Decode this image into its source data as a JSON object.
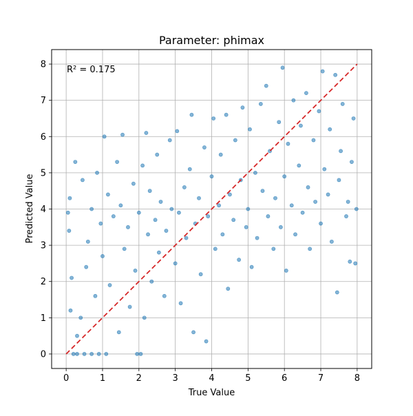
{
  "chart_data": {
    "type": "scatter",
    "title": "Parameter: phimax",
    "xlabel": "True Value",
    "ylabel": "Predicted Value",
    "annotation": "R² = 0.175",
    "xlim": [
      -0.4,
      8.4
    ],
    "ylim": [
      -0.4,
      8.4
    ],
    "xticks": [
      0,
      1,
      2,
      3,
      4,
      5,
      6,
      7,
      8
    ],
    "yticks": [
      0,
      1,
      2,
      3,
      4,
      5,
      6,
      7,
      8
    ],
    "grid": true,
    "colors": {
      "points": "#1f77b4",
      "identity_line": "#d62728",
      "grid": "#b0b0b0"
    },
    "identity_line": {
      "x": [
        0,
        8
      ],
      "y": [
        0,
        8
      ],
      "style": "dashed"
    },
    "points": [
      {
        "x": 0.05,
        "y": 3.9
      },
      {
        "x": 0.1,
        "y": 4.3
      },
      {
        "x": 0.08,
        "y": 3.4
      },
      {
        "x": 0.15,
        "y": 2.1
      },
      {
        "x": 0.12,
        "y": 1.2
      },
      {
        "x": 0.2,
        "y": 0.0
      },
      {
        "x": 0.3,
        "y": 0.0
      },
      {
        "x": 0.5,
        "y": 0.0
      },
      {
        "x": 0.7,
        "y": 0.0
      },
      {
        "x": 0.9,
        "y": 0.0
      },
      {
        "x": 1.1,
        "y": 0.0
      },
      {
        "x": 0.25,
        "y": 5.3
      },
      {
        "x": 0.3,
        "y": 0.5
      },
      {
        "x": 0.4,
        "y": 1.0
      },
      {
        "x": 0.45,
        "y": 4.8
      },
      {
        "x": 0.55,
        "y": 2.4
      },
      {
        "x": 0.6,
        "y": 3.1
      },
      {
        "x": 0.7,
        "y": 4.0
      },
      {
        "x": 0.8,
        "y": 1.6
      },
      {
        "x": 0.85,
        "y": 5.0
      },
      {
        "x": 0.95,
        "y": 3.6
      },
      {
        "x": 1.0,
        "y": 2.7
      },
      {
        "x": 1.05,
        "y": 6.0
      },
      {
        "x": 1.15,
        "y": 4.4
      },
      {
        "x": 1.2,
        "y": 1.9
      },
      {
        "x": 1.3,
        "y": 3.8
      },
      {
        "x": 1.4,
        "y": 5.3
      },
      {
        "x": 1.45,
        "y": 0.6
      },
      {
        "x": 1.5,
        "y": 4.1
      },
      {
        "x": 1.55,
        "y": 6.05
      },
      {
        "x": 1.6,
        "y": 2.9
      },
      {
        "x": 1.7,
        "y": 3.5
      },
      {
        "x": 1.75,
        "y": 1.3
      },
      {
        "x": 1.85,
        "y": 4.7
      },
      {
        "x": 1.9,
        "y": 2.3
      },
      {
        "x": 1.95,
        "y": 0.0
      },
      {
        "x": 2.05,
        "y": 0.0
      },
      {
        "x": 2.0,
        "y": 3.9
      },
      {
        "x": 2.1,
        "y": 5.2
      },
      {
        "x": 2.15,
        "y": 1.0
      },
      {
        "x": 2.2,
        "y": 6.1
      },
      {
        "x": 2.25,
        "y": 3.3
      },
      {
        "x": 2.3,
        "y": 4.5
      },
      {
        "x": 2.35,
        "y": 2.0
      },
      {
        "x": 2.45,
        "y": 3.7
      },
      {
        "x": 2.5,
        "y": 5.5
      },
      {
        "x": 2.55,
        "y": 2.8
      },
      {
        "x": 2.6,
        "y": 4.2
      },
      {
        "x": 2.7,
        "y": 1.6
      },
      {
        "x": 2.75,
        "y": 3.4
      },
      {
        "x": 2.85,
        "y": 5.9
      },
      {
        "x": 2.9,
        "y": 4.0
      },
      {
        "x": 3.0,
        "y": 2.5
      },
      {
        "x": 3.05,
        "y": 6.15
      },
      {
        "x": 3.1,
        "y": 3.9
      },
      {
        "x": 3.15,
        "y": 1.4
      },
      {
        "x": 3.25,
        "y": 4.6
      },
      {
        "x": 3.3,
        "y": 3.2
      },
      {
        "x": 3.4,
        "y": 5.1
      },
      {
        "x": 3.45,
        "y": 6.6
      },
      {
        "x": 3.5,
        "y": 0.6
      },
      {
        "x": 3.55,
        "y": 3.6
      },
      {
        "x": 3.65,
        "y": 4.3
      },
      {
        "x": 3.7,
        "y": 2.2
      },
      {
        "x": 3.8,
        "y": 5.7
      },
      {
        "x": 3.85,
        "y": 0.35
      },
      {
        "x": 3.9,
        "y": 3.8
      },
      {
        "x": 4.0,
        "y": 4.9
      },
      {
        "x": 4.05,
        "y": 6.5
      },
      {
        "x": 4.1,
        "y": 2.9
      },
      {
        "x": 4.2,
        "y": 4.1
      },
      {
        "x": 4.25,
        "y": 5.5
      },
      {
        "x": 4.3,
        "y": 3.3
      },
      {
        "x": 4.4,
        "y": 6.6
      },
      {
        "x": 4.45,
        "y": 1.8
      },
      {
        "x": 4.5,
        "y": 4.4
      },
      {
        "x": 4.6,
        "y": 3.7
      },
      {
        "x": 4.65,
        "y": 5.9
      },
      {
        "x": 4.75,
        "y": 2.6
      },
      {
        "x": 4.8,
        "y": 4.8
      },
      {
        "x": 4.85,
        "y": 6.8
      },
      {
        "x": 4.95,
        "y": 3.5
      },
      {
        "x": 5.0,
        "y": 4.0
      },
      {
        "x": 5.05,
        "y": 6.2
      },
      {
        "x": 5.1,
        "y": 2.4
      },
      {
        "x": 5.2,
        "y": 5.0
      },
      {
        "x": 5.25,
        "y": 3.2
      },
      {
        "x": 5.35,
        "y": 6.9
      },
      {
        "x": 5.4,
        "y": 4.5
      },
      {
        "x": 5.5,
        "y": 7.4
      },
      {
        "x": 5.55,
        "y": 3.8
      },
      {
        "x": 5.6,
        "y": 5.6
      },
      {
        "x": 5.7,
        "y": 2.9
      },
      {
        "x": 5.75,
        "y": 4.3
      },
      {
        "x": 5.85,
        "y": 6.4
      },
      {
        "x": 5.9,
        "y": 3.5
      },
      {
        "x": 5.95,
        "y": 7.9
      },
      {
        "x": 6.0,
        "y": 4.9
      },
      {
        "x": 6.05,
        "y": 2.3
      },
      {
        "x": 6.1,
        "y": 5.8
      },
      {
        "x": 6.2,
        "y": 4.1
      },
      {
        "x": 6.25,
        "y": 7.0
      },
      {
        "x": 6.3,
        "y": 3.3
      },
      {
        "x": 6.4,
        "y": 5.2
      },
      {
        "x": 6.45,
        "y": 6.3
      },
      {
        "x": 6.5,
        "y": 3.9
      },
      {
        "x": 6.6,
        "y": 7.2
      },
      {
        "x": 6.65,
        "y": 4.6
      },
      {
        "x": 6.7,
        "y": 2.9
      },
      {
        "x": 6.8,
        "y": 5.9
      },
      {
        "x": 6.85,
        "y": 4.2
      },
      {
        "x": 6.95,
        "y": 6.7
      },
      {
        "x": 7.0,
        "y": 3.6
      },
      {
        "x": 7.05,
        "y": 7.8
      },
      {
        "x": 7.1,
        "y": 5.1
      },
      {
        "x": 7.2,
        "y": 4.4
      },
      {
        "x": 7.25,
        "y": 6.2
      },
      {
        "x": 7.3,
        "y": 3.1
      },
      {
        "x": 7.4,
        "y": 7.7
      },
      {
        "x": 7.45,
        "y": 1.7
      },
      {
        "x": 7.5,
        "y": 4.8
      },
      {
        "x": 7.55,
        "y": 5.6
      },
      {
        "x": 7.6,
        "y": 6.9
      },
      {
        "x": 7.7,
        "y": 3.8
      },
      {
        "x": 7.75,
        "y": 4.2
      },
      {
        "x": 7.8,
        "y": 2.55
      },
      {
        "x": 7.85,
        "y": 5.3
      },
      {
        "x": 7.9,
        "y": 6.5
      },
      {
        "x": 7.95,
        "y": 2.5
      },
      {
        "x": 7.98,
        "y": 4.0
      }
    ]
  }
}
